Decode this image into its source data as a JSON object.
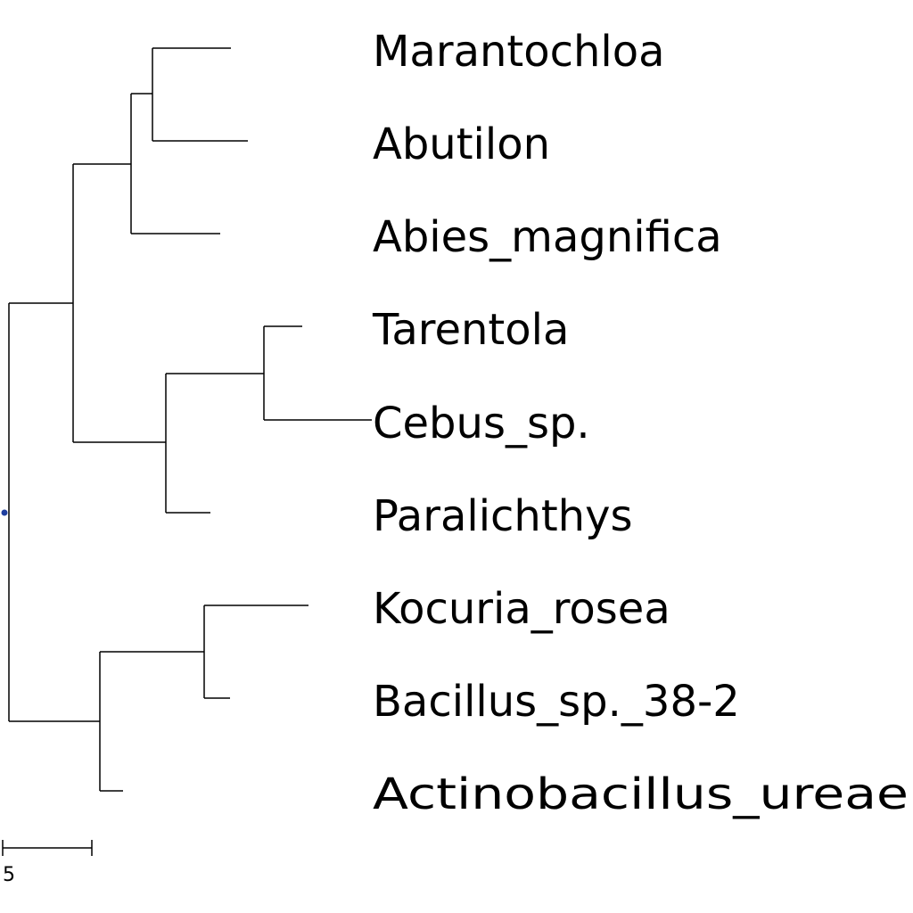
{
  "tree": {
    "leaves": [
      {
        "name": "Marantochloa"
      },
      {
        "name": "Abutilon"
      },
      {
        "name": "Abies_magnifica"
      },
      {
        "name": "Tarentola"
      },
      {
        "name": "Cebus_sp."
      },
      {
        "name": "Paralichthys"
      },
      {
        "name": "Kocuria_rosea"
      },
      {
        "name": "Bacillus_sp._38-2"
      },
      {
        "name": "Actinobacillus_ureae"
      }
    ],
    "root_marker_color": "#1f3fa0"
  },
  "scale_bar": {
    "label": "5"
  }
}
